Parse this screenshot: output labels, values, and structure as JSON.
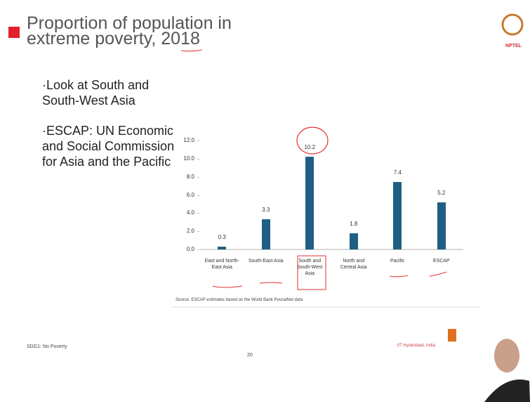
{
  "slide": {
    "title": "Proportion of population in extreme poverty, 2018",
    "bullets": [
      "Look at South and South-West Asia",
      "ESCAP: UN Economic and Social Commission for Asia and the Pacific"
    ],
    "source": "Source: ESCAP estimates based on the World Bank PovcalNet data",
    "footer_left": "SDG1: No Poverty",
    "page": "20",
    "footer_right": "IIT Hyderabad, India",
    "logo": "NPTEL"
  },
  "chart_data": {
    "type": "bar",
    "categories": [
      "East and North-East Asia",
      "South-East Asia",
      "South and South-West Asia",
      "North and Central Asia",
      "Pacific",
      "ESCAP"
    ],
    "values": [
      0.3,
      3.3,
      10.2,
      1.8,
      7.4,
      5.2
    ],
    "color": "#1f5f84",
    "ylim": [
      0,
      12
    ],
    "yticks": [
      {
        "value": 0,
        "label": "0.0"
      },
      {
        "value": 2,
        "label": "2.0"
      },
      {
        "value": 4,
        "label": "4.0"
      },
      {
        "value": 6,
        "label": "6.0"
      },
      {
        "value": 8,
        "label": "8.0"
      },
      {
        "value": 10,
        "label": "10.0"
      },
      {
        "value": 12,
        "label": "12.0"
      }
    ]
  }
}
